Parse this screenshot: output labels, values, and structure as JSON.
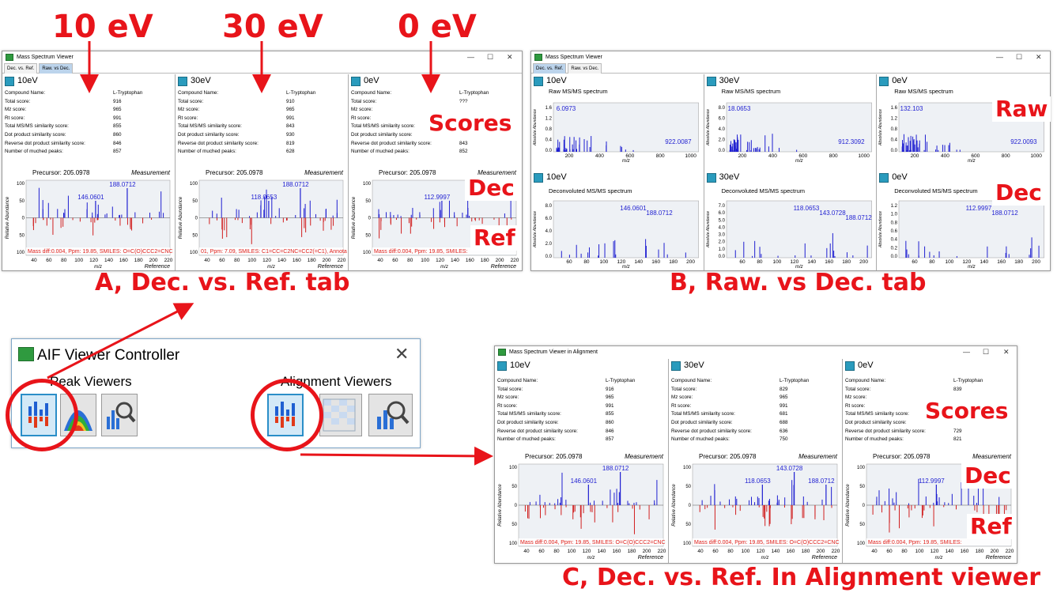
{
  "labels": {
    "ev10": "10 eV",
    "ev30": "30 eV",
    "ev0": "0 eV",
    "scores": "Scores",
    "dec": "Dec",
    "ref": "Ref",
    "raw": "Raw",
    "capA": "A, Dec. vs. Ref. tab",
    "capB": "B, Raw. vs Dec. tab",
    "capC": "C, Dec. vs. Ref.  In Alignment  viewer"
  },
  "colors": {
    "annotation": "#e8141a",
    "measurement": "#1f1fd1",
    "reference": "#d11f1f"
  },
  "common": {
    "score_keys": [
      "Compound Name:",
      "Total score:",
      "Mz score:",
      "Rt score:",
      "Total MS/MS similarity score:",
      "Dot product similarity score:",
      "Reverse dot product similarity score:",
      "Number of muched peaks:"
    ],
    "precursor": "Precursor: 205.0978",
    "measurement": "Measurement",
    "reference": "Reference",
    "mz": "m/z",
    "rel_abund": "Relative Abundance",
    "abs_abund": "Absolute Abundance"
  },
  "winA": {
    "title": "Mass Spectrum Viewer",
    "tabs": [
      "Dec. vs. Ref.",
      "Raw. vs Dec."
    ],
    "panes": [
      {
        "title": "10eV",
        "scores": [
          "L-Tryptophan",
          "916",
          "965",
          "991",
          "855",
          "860",
          "846",
          "857"
        ],
        "footer": "Mass diff:0.004, Ppm: 19.85, SMILES: O=C(O)CCC2=CNC",
        "peak_labels": [
          "146.0601",
          "188.0712"
        ]
      },
      {
        "title": "30eV",
        "scores": [
          "L-Tryptophan",
          "910",
          "965",
          "991",
          "843",
          "930",
          "819",
          "628"
        ],
        "footer": "01, Ppm: 7.09, SMILES: C1=CC=C2NC=CC2(=C1), Annota",
        "peak_labels": [
          "118.0653",
          "188.0712"
        ]
      },
      {
        "title": "0eV",
        "scores": [
          "L-Tryptophan",
          "???",
          "",
          "",
          "",
          "741",
          "843",
          "852"
        ],
        "footer": "Mass diff:0.004, Ppm: 19.85, SMILES:",
        "peak_labels": [
          "112.9997"
        ]
      }
    ]
  },
  "winB": {
    "title": "Mass Spectrum Viewer",
    "tabs": [
      "Dec. vs. Ref.",
      "Raw. vs Dec."
    ],
    "raw_title": "Raw MS/MS spectrum",
    "dec_title": "Deconvoluted MS/MS spectrum",
    "panes": [
      {
        "title": "10eV",
        "raw_peaks": [
          "6.0973",
          "922.0087"
        ],
        "raw_scale": "(1e+6)",
        "raw_yticks": [
          "1.6",
          "1.2",
          "0.8",
          "0.4",
          "0.0"
        ],
        "dec_peaks": [
          "146.0601",
          "188.0712"
        ],
        "dec_scale": "(1e+5)",
        "dec_yticks": [
          "8.0",
          "6.0",
          "4.0",
          "2.0",
          "0.0"
        ]
      },
      {
        "title": "30eV",
        "raw_peaks": [
          "18.0653",
          "912.3092"
        ],
        "raw_scale": "(1e+5)",
        "raw_yticks": [
          "8.0",
          "6.0",
          "4.0",
          "2.0",
          "0.0"
        ],
        "dec_peaks": [
          "118.0653",
          "143.0728",
          "188.0712"
        ],
        "dec_scale": "(1e+5)",
        "dec_yticks": [
          "7.0",
          "6.0",
          "5.0",
          "4.0",
          "3.0",
          "2.0",
          "1.0",
          "0.0"
        ]
      },
      {
        "title": "0eV",
        "raw_peaks": [
          "132.103",
          "922.0093"
        ],
        "raw_scale": "(1e+6)",
        "raw_yticks": [
          "1.6",
          "1.2",
          "0.8",
          "0.4",
          "0.0"
        ],
        "dec_peaks": [
          "112.9997",
          "188.0712"
        ],
        "dec_scale": "(1e+6)",
        "dec_yticks": [
          "1.2",
          "1.0",
          "0.8",
          "0.6",
          "0.4",
          "0.2",
          "0.0"
        ]
      }
    ]
  },
  "controller": {
    "title": "AIF Viewer Controller",
    "peak_label": "Peak Viewers",
    "align_label": "Alignment Viewers",
    "buttons": [
      "ms-spectrum-icon",
      "chromatogram-icon",
      "spectrum-search-icon",
      "ms-spectrum-icon",
      "heatmap-icon",
      "spectrum-search-icon"
    ]
  },
  "winC": {
    "title": "Mass Spectrum Viewer in Alignment",
    "panes": [
      {
        "title": "10eV",
        "scores": [
          "L-Tryptophan",
          "916",
          "965",
          "991",
          "855",
          "860",
          "846",
          "857"
        ],
        "footer": "Mass diff:0.004, Ppm: 19.85, SMILES: O=C(O)CCC2=CNC",
        "peak_labels": [
          "146.0601",
          "188.0712"
        ]
      },
      {
        "title": "30eV",
        "scores": [
          "L-Tryptophan",
          "829",
          "965",
          "991",
          "681",
          "688",
          "636",
          "750"
        ],
        "footer": "Mass diff:0.004, Ppm: 19.85, SMILES: O=C(O)CCC2=CNC",
        "peak_labels": [
          "118.0653",
          "143.0728",
          "188.0712"
        ]
      },
      {
        "title": "0eV",
        "scores": [
          "L-Tryptophan",
          "839",
          "",
          "",
          "",
          "",
          "729",
          "821"
        ],
        "footer": "Mass diff:0.004, Ppm: 19.85, SMILES:",
        "peak_labels": [
          "112.9997"
        ]
      }
    ]
  },
  "axes": {
    "mz_ticks": [
      "40",
      "60",
      "80",
      "100",
      "120",
      "140",
      "160",
      "180",
      "200",
      "220"
    ],
    "rel_ticks": [
      "100",
      "50",
      "0",
      "50",
      "100"
    ],
    "raw_mz_ticks": [
      "200",
      "400",
      "600",
      "800",
      "1000"
    ],
    "dec_mz_ticks": [
      "60",
      "80",
      "100",
      "120",
      "140",
      "160",
      "180",
      "200"
    ]
  }
}
